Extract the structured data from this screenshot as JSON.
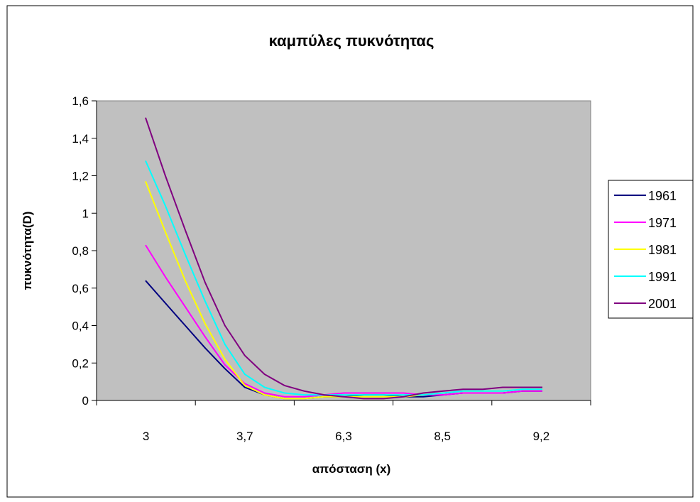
{
  "chart_data": {
    "type": "line",
    "title": "καμπύλες πυκνότητας",
    "xlabel": "απόσταση (x)",
    "ylabel": "πυκνότητα(D)",
    "ylim": [
      0,
      1.6
    ],
    "yticks": [
      "0",
      "0,2",
      "0,4",
      "0,6",
      "0,8",
      "1",
      "1,2",
      "1,4",
      "1,6"
    ],
    "yticks_values": [
      0,
      0.2,
      0.4,
      0.6,
      0.8,
      1.0,
      1.2,
      1.4,
      1.6
    ],
    "x_ticks": [
      "3",
      "3,7",
      "6,3",
      "8,5",
      "9,2"
    ],
    "point_count": 21,
    "grid": false,
    "plot_background": "#c0c0c0",
    "legend_position": "right",
    "series": [
      {
        "name": "1961",
        "color": "#000080",
        "values": [
          0.64,
          0.52,
          0.4,
          0.28,
          0.17,
          0.07,
          0.03,
          0.01,
          0.01,
          0.02,
          0.02,
          0.03,
          0.03,
          0.02,
          0.02,
          0.03,
          0.04,
          0.04,
          0.04,
          0.05,
          0.05
        ]
      },
      {
        "name": "1971",
        "color": "#ff00ff",
        "values": [
          0.83,
          0.66,
          0.5,
          0.34,
          0.19,
          0.09,
          0.04,
          0.02,
          0.02,
          0.03,
          0.04,
          0.04,
          0.04,
          0.04,
          0.03,
          0.03,
          0.04,
          0.04,
          0.04,
          0.05,
          0.05
        ]
      },
      {
        "name": "1981",
        "color": "#ffff00",
        "values": [
          1.17,
          0.9,
          0.64,
          0.41,
          0.22,
          0.08,
          0.03,
          0.01,
          0.01,
          0.02,
          0.02,
          0.02,
          0.02,
          0.02,
          0.03,
          0.04,
          0.05,
          0.05,
          0.05,
          0.06,
          0.06
        ]
      },
      {
        "name": "1991",
        "color": "#00ffff",
        "values": [
          1.28,
          1.04,
          0.78,
          0.53,
          0.3,
          0.14,
          0.07,
          0.04,
          0.03,
          0.03,
          0.03,
          0.03,
          0.03,
          0.03,
          0.03,
          0.04,
          0.05,
          0.05,
          0.05,
          0.06,
          0.06
        ]
      },
      {
        "name": "2001",
        "color": "#800080",
        "values": [
          1.51,
          1.2,
          0.91,
          0.63,
          0.4,
          0.24,
          0.14,
          0.08,
          0.05,
          0.03,
          0.02,
          0.01,
          0.01,
          0.02,
          0.04,
          0.05,
          0.06,
          0.06,
          0.07,
          0.07,
          0.07
        ]
      }
    ]
  }
}
